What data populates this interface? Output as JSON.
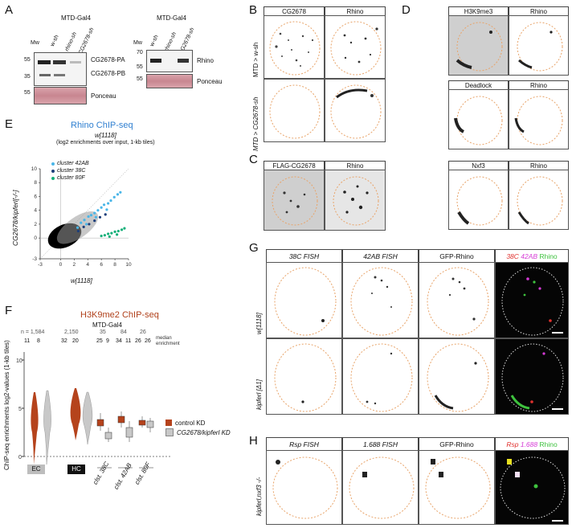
{
  "panels": {
    "A": {
      "letter": "A",
      "blot1": {
        "title": "MTD-Gal4",
        "mw_label": "Mw",
        "lanes": [
          "w-sh",
          "rhino-sh",
          "CG2678-sh"
        ],
        "markers": [
          "55",
          "35",
          "55"
        ],
        "bands": [
          "CG2678-PA",
          "CG2678-PB"
        ],
        "ponceau": "Ponceau"
      },
      "blot2": {
        "title": "MTD-Gal4",
        "mw_label": "Mw",
        "lanes": [
          "w-sh",
          "rhino-sh",
          "CG2678-sh"
        ],
        "markers": [
          "70",
          "55",
          "55"
        ],
        "band": "Rhino",
        "ponceau": "Ponceau"
      }
    },
    "B": {
      "letter": "B",
      "headers": [
        "CG2678",
        "Rhino"
      ],
      "rows": [
        "MTD > w-sh",
        "MTD > CG2678-sh"
      ]
    },
    "C": {
      "letter": "C",
      "headers": [
        "FLAG-CG2678",
        "Rhino"
      ]
    },
    "D": {
      "letter": "D",
      "pairs": [
        [
          "H3K9me3",
          "Rhino"
        ],
        [
          "Deadlock",
          "Rhino"
        ],
        [
          "Nxf3",
          "Rhino"
        ]
      ]
    },
    "E": {
      "letter": "E",
      "title": "Rhino  ChIP-seq",
      "subtitle": "(log2 enrichments over input, 1-kb tiles)",
      "top_label": "w[1118]",
      "legend": [
        "cluster 42AB",
        "cluster 38C",
        "cluster 80F"
      ],
      "ylabel": "CG2678/kipferl[-/-]",
      "xlabel": "w[1118]"
    },
    "F": {
      "letter": "F",
      "title": "H3K9me2  ChIP-seq",
      "subtitle": "MTD-Gal4",
      "n_label": "n = 1,584",
      "counts_top": [
        "1,584",
        "2,150",
        "35",
        "84",
        "26"
      ],
      "median_label": "median enrichment",
      "medians": [
        "11",
        "8",
        "32",
        "20",
        "25",
        "9",
        "34",
        "11",
        "26",
        "26"
      ],
      "ylabel": "ChIP-seq enrichments log2-values (1-kb tiles)",
      "legend": [
        "control KD",
        "CG2678/kipferl KD"
      ],
      "groups": [
        "EC",
        "HC"
      ],
      "clusters": [
        "clst. 38C",
        "clst. 42AB",
        "clst. 80F"
      ]
    },
    "G": {
      "letter": "G",
      "headers": [
        "38C FISH",
        "42AB FISH",
        "GFP-Rhino"
      ],
      "merge": [
        "38C",
        "42AB",
        "Rhino"
      ],
      "rows": [
        "w[1118]",
        "kipferl [Δ1]"
      ]
    },
    "H": {
      "letter": "H",
      "headers": [
        "Rsp FISH",
        "1.688 FISH",
        "GFP-Rhino"
      ],
      "merge": [
        "Rsp",
        "1.688",
        "Rhino"
      ],
      "row": "kipferl,nxf3 -/-"
    }
  },
  "colors": {
    "rhino_blue": "#2f7fd0",
    "h3k9_red": "#b0401a",
    "control": "#b5431c",
    "kd": "#c8c8c8",
    "c42ab": "#4ab6e8",
    "c38c": "#1c3e7a",
    "c80f": "#16b07a",
    "fish_red": "#e0312e",
    "fish_magenta": "#d63bd6",
    "fish_green": "#3ec23e"
  },
  "chart_data": {
    "type": "scatter",
    "title": "Rhino  ChIP-seq",
    "xlabel": "w[1118]",
    "ylabel": "CG2678/kipferl[-/-]",
    "xlim": [
      -3,
      10
    ],
    "ylim": [
      -3,
      10
    ],
    "xticks": [
      -3,
      0,
      2,
      4,
      6,
      8,
      10
    ],
    "yticks": [
      -3,
      0,
      2,
      4,
      6,
      8,
      10
    ],
    "series": [
      {
        "name": "cluster 42AB",
        "points": [
          [
            3.0,
            2.2
          ],
          [
            3.5,
            2.6
          ],
          [
            4.1,
            3.1
          ],
          [
            4.5,
            3.3
          ],
          [
            5.0,
            3.6
          ],
          [
            5.5,
            4.0
          ],
          [
            6.0,
            4.4
          ],
          [
            6.4,
            4.8
          ],
          [
            7.0,
            5.0
          ],
          [
            7.4,
            5.4
          ],
          [
            7.9,
            5.9
          ],
          [
            8.4,
            6.3
          ],
          [
            2.5,
            1.5
          ],
          [
            3.8,
            2.0
          ],
          [
            5.2,
            3.0
          ],
          [
            6.8,
            4.1
          ],
          [
            8.8,
            6.6
          ]
        ]
      },
      {
        "name": "cluster 38C",
        "points": [
          [
            2.6,
            1.0
          ],
          [
            3.4,
            1.6
          ],
          [
            4.2,
            2.0
          ],
          [
            5.0,
            2.5
          ],
          [
            5.8,
            3.0
          ],
          [
            6.6,
            3.4
          ]
        ]
      },
      {
        "name": "cluster 80F",
        "points": [
          [
            6.0,
            0.3
          ],
          [
            6.5,
            0.4
          ],
          [
            7.0,
            0.6
          ],
          [
            7.5,
            0.7
          ],
          [
            8.0,
            0.9
          ],
          [
            8.5,
            1.0
          ],
          [
            9.0,
            1.2
          ],
          [
            9.4,
            1.4
          ],
          [
            7.2,
            0.2
          ],
          [
            8.3,
            0.5
          ]
        ]
      }
    ]
  }
}
